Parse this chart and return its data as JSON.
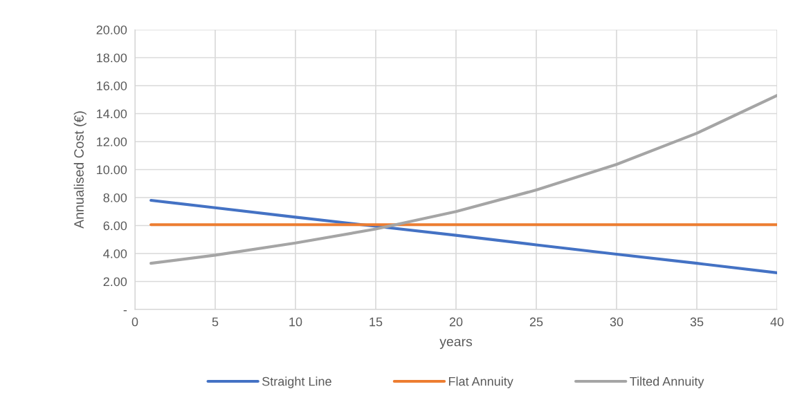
{
  "chart_data": {
    "type": "line",
    "xlabel": "years",
    "ylabel": "Annualised Cost (€)",
    "xlim": [
      0,
      40
    ],
    "xticks": [
      0,
      5,
      10,
      15,
      20,
      25,
      30,
      35,
      40
    ],
    "ylim": [
      0,
      20
    ],
    "yticks": [
      {
        "value": 0,
        "label": "-"
      },
      {
        "value": 2,
        "label": "2.00"
      },
      {
        "value": 4,
        "label": "4.00"
      },
      {
        "value": 6,
        "label": "6.00"
      },
      {
        "value": 8,
        "label": "8.00"
      },
      {
        "value": 10,
        "label": "10.00"
      },
      {
        "value": 12,
        "label": "12.00"
      },
      {
        "value": 14,
        "label": "14.00"
      },
      {
        "value": 16,
        "label": "16.00"
      },
      {
        "value": 18,
        "label": "18.00"
      },
      {
        "value": 20,
        "label": "20.00"
      }
    ],
    "grid": true,
    "legend": "bottom",
    "marker": "none",
    "line_style": "solid",
    "series": [
      {
        "name": "Straight Line",
        "color": "#4472c4",
        "x": [
          1,
          5,
          10,
          15,
          20,
          25,
          30,
          35,
          40
        ],
        "values": [
          7.8,
          7.27,
          6.6,
          5.95,
          5.3,
          4.62,
          3.95,
          3.3,
          2.62
        ]
      },
      {
        "name": "Flat Annuity",
        "color": "#ed7d31",
        "x": [
          1,
          40
        ],
        "values": [
          6.06,
          6.06
        ]
      },
      {
        "name": "Tilted Annuity",
        "color": "#a5a5a5",
        "x": [
          1,
          5,
          10,
          15,
          20,
          25,
          30,
          35,
          40
        ],
        "values": [
          3.3,
          3.88,
          4.75,
          5.75,
          7.0,
          8.54,
          10.37,
          12.6,
          15.3
        ]
      }
    ]
  }
}
